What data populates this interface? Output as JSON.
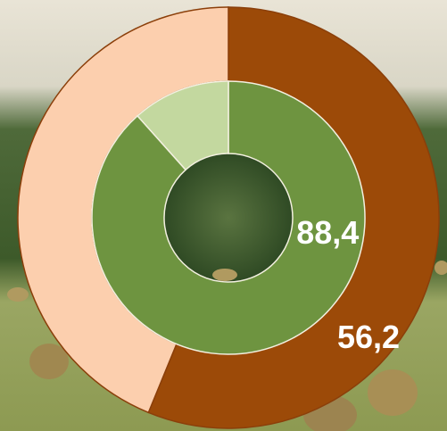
{
  "chart_data": {
    "type": "donut",
    "series": [
      {
        "values": [
          56.2,
          43.8
        ],
        "value_labels": [
          "56,2",
          null
        ],
        "colors": [
          "#9c4a08",
          "#fccfae"
        ]
      },
      {
        "values": [
          88.4,
          11.6
        ],
        "value_labels": [
          "88,4",
          null
        ],
        "colors": [
          "#6e9440",
          "#c3d89f"
        ]
      }
    ]
  }
}
